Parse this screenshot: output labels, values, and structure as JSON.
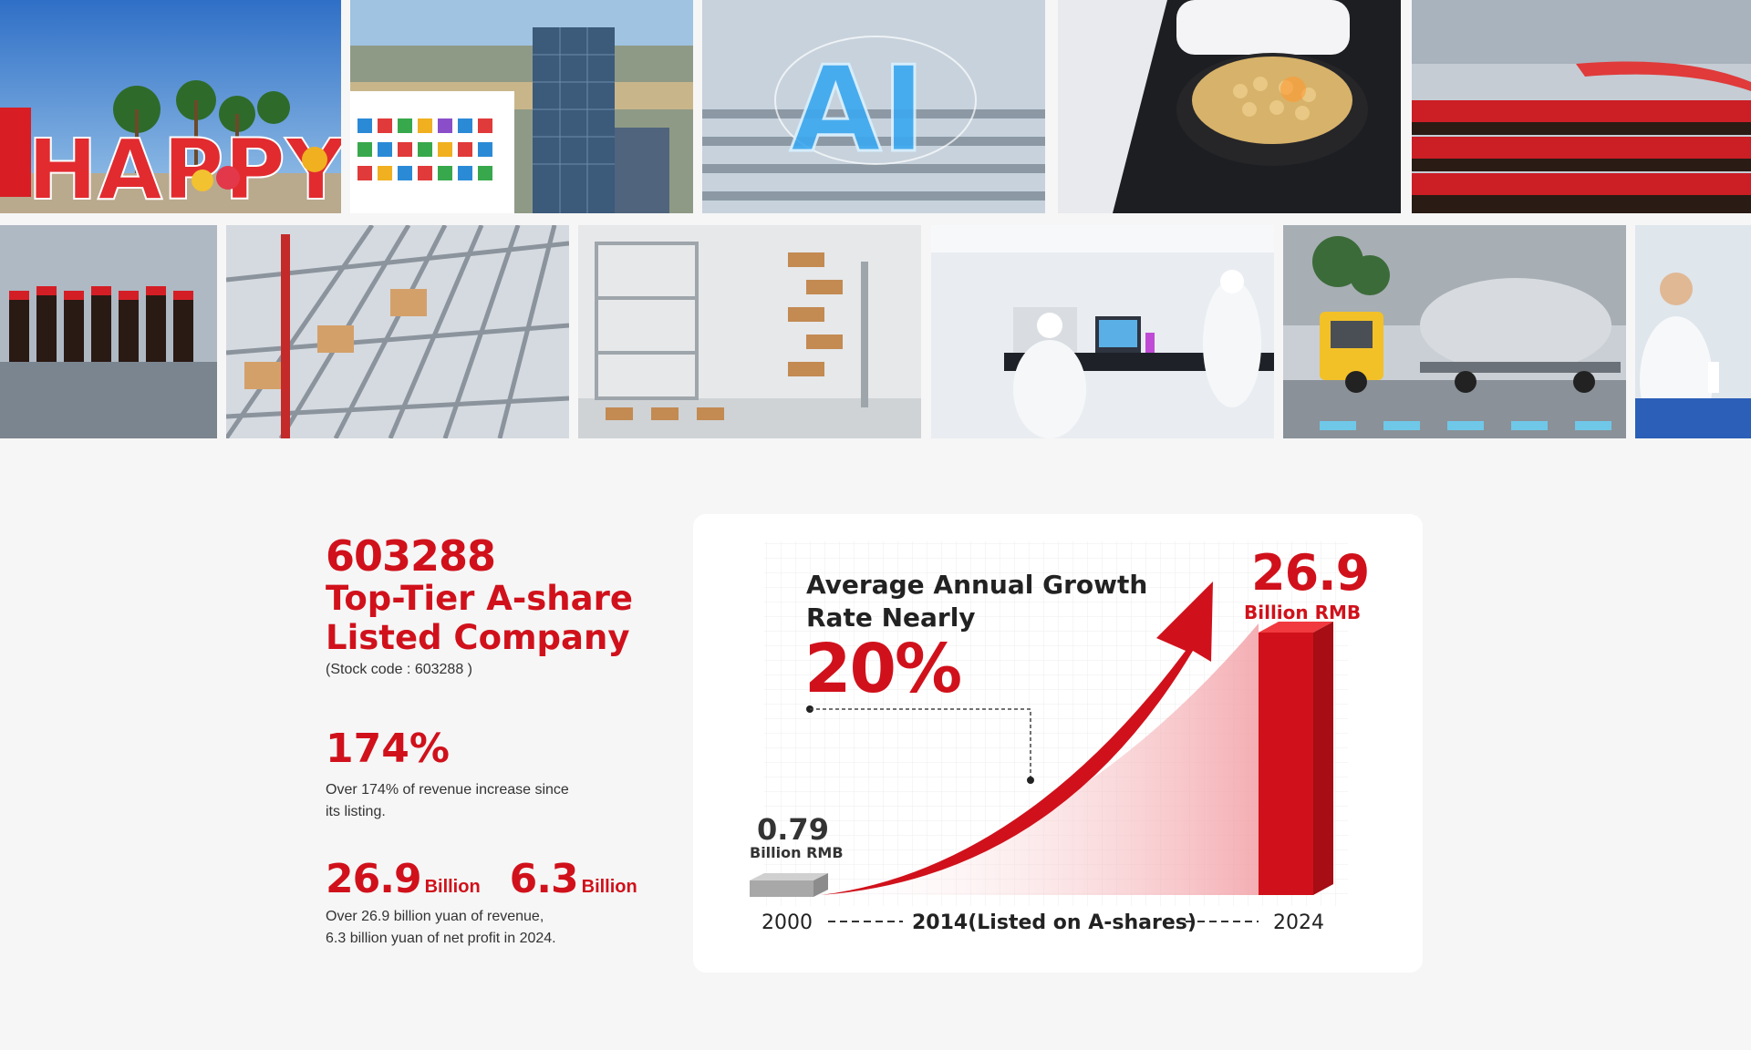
{
  "photo_strip": {
    "row1": [
      {
        "name": "photo-happy-sign",
        "caption": "HAPPY"
      },
      {
        "name": "photo-factory-tower"
      },
      {
        "name": "photo-ai-warehouse",
        "caption": "AI"
      },
      {
        "name": "photo-soybeans-machine"
      },
      {
        "name": "photo-bottling-line"
      }
    ],
    "row2": [
      {
        "name": "photo-bottle-carousel"
      },
      {
        "name": "photo-automated-shelving"
      },
      {
        "name": "photo-spiral-conveyor"
      },
      {
        "name": "photo-laboratory"
      },
      {
        "name": "photo-tanker-vehicle"
      },
      {
        "name": "photo-lab-worker"
      }
    ]
  },
  "stats": {
    "code_big": "603288",
    "headline_line1": "Top-Tier A-share",
    "headline_line2": "Listed Company",
    "stock_code_note": "(Stock code :  603288 )",
    "growth_pct": "174%",
    "growth_desc_line1": "Over 174% of revenue increase since",
    "growth_desc_line2": "its listing.",
    "revenue_value": "26.9",
    "revenue_unit": "Billion",
    "profit_value": "6.3",
    "profit_unit": "Billion",
    "money_desc_line1": "Over 26.9 billion yuan of revenue,",
    "money_desc_line2": "6.3 billion yuan of net profit in 2024."
  },
  "chart_data": {
    "type": "area",
    "title_line1": "Average Annual Growth",
    "title_line2": "Rate Nearly",
    "growth_rate": "20%",
    "x": [
      "2000",
      "2014(Listed on A-shares)",
      "2024"
    ],
    "start_value_label": "0.79",
    "start_unit": "Billion RMB",
    "end_value_label": "26.9",
    "end_unit": "Billion RMB",
    "series": [
      {
        "values": [
          0.79,
          null,
          26.9
        ]
      }
    ],
    "colors": {
      "accent": "#d0111b",
      "base_bar": "#a8a8a8"
    }
  }
}
